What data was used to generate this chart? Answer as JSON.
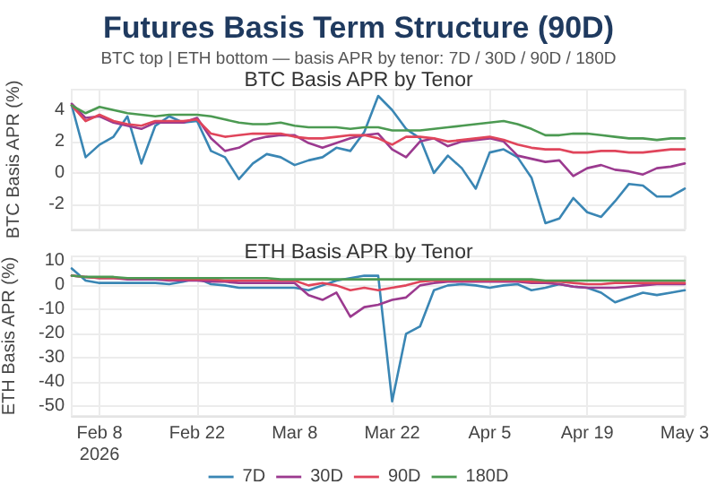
{
  "chart_data": [
    {
      "type": "line",
      "title": "Futures Basis Term Structure (90D)",
      "subtitle": "BTC top | ETH bottom — basis APR by tenor: 7D / 30D / 90D / 180D",
      "annotations": [
        "BTC Basis APR by Tenor"
      ],
      "ylabel": "BTC Basis APR (%)",
      "x": [
        "2026-02-04",
        "2026-02-06",
        "2026-02-08",
        "2026-02-10",
        "2026-02-12",
        "2026-02-14",
        "2026-02-16",
        "2026-02-18",
        "2026-02-20",
        "2026-02-22",
        "2026-02-24",
        "2026-02-26",
        "2026-02-28",
        "2026-03-02",
        "2026-03-04",
        "2026-03-06",
        "2026-03-08",
        "2026-03-10",
        "2026-03-12",
        "2026-03-14",
        "2026-03-16",
        "2026-03-18",
        "2026-03-20",
        "2026-03-22",
        "2026-03-24",
        "2026-03-26",
        "2026-03-28",
        "2026-03-30",
        "2026-04-01",
        "2026-04-03",
        "2026-04-05",
        "2026-04-07",
        "2026-04-09",
        "2026-04-11",
        "2026-04-13",
        "2026-04-15",
        "2026-04-17",
        "2026-04-19",
        "2026-04-21",
        "2026-04-23",
        "2026-04-25",
        "2026-04-27",
        "2026-04-29",
        "2026-05-01",
        "2026-05-03"
      ],
      "series": [
        {
          "color": "#3a86b4",
          "values": [
            4.3,
            1.0,
            1.8,
            2.3,
            3.6,
            0.6,
            3.0,
            3.6,
            3.2,
            3.3,
            1.4,
            1.0,
            -0.4,
            0.6,
            1.2,
            1.0,
            0.5,
            0.8,
            1.0,
            1.6,
            1.4,
            2.6,
            4.9,
            4.0,
            2.8,
            2.2,
            0,
            1.1,
            0.3,
            -1.0,
            1.3,
            1.5,
            1.0,
            -0.3,
            -3.2,
            -2.9,
            -1.6,
            -2.5,
            -2.8,
            -1.8,
            -0.7,
            -0.8,
            -1.5,
            -1.5,
            -1.0
          ]
        },
        {
          "color": "#9b3a8f",
          "values": [
            4.4,
            3.5,
            3.6,
            3.2,
            3.0,
            2.8,
            3.2,
            3.2,
            3.2,
            3.5,
            2.2,
            1.4,
            1.6,
            2.1,
            2.3,
            2.4,
            2.4,
            1.9,
            1.6,
            1.9,
            2.2,
            2.4,
            2.5,
            1.5,
            1.0,
            2.0,
            2.2,
            1.7,
            2.0,
            2.1,
            2.2,
            2.0,
            1.1,
            0.9,
            0.7,
            0.8,
            -0.2,
            0.3,
            0.5,
            0.2,
            0.1,
            -0.1,
            0.3,
            0.4,
            0.6
          ]
        },
        {
          "color": "#e0455b",
          "values": [
            4.3,
            3.3,
            3.7,
            3.3,
            3.1,
            3.0,
            3.3,
            3.3,
            3.3,
            3.4,
            2.5,
            2.3,
            2.4,
            2.5,
            2.5,
            2.5,
            2.3,
            2.2,
            2.2,
            2.3,
            2.4,
            2.4,
            2.2,
            1.8,
            2.3,
            2.3,
            2.2,
            2.0,
            2.1,
            2.2,
            2.3,
            2.1,
            1.8,
            1.6,
            1.5,
            1.5,
            1.3,
            1.3,
            1.4,
            1.4,
            1.3,
            1.3,
            1.4,
            1.5,
            1.5
          ]
        },
        {
          "color": "#4c9a52",
          "values": [
            4.3,
            3.8,
            4.2,
            4.0,
            3.8,
            3.7,
            3.6,
            3.7,
            3.7,
            3.7,
            3.6,
            3.4,
            3.2,
            3.1,
            3.1,
            3.2,
            3.0,
            2.9,
            2.9,
            2.9,
            2.8,
            2.9,
            2.9,
            2.7,
            2.7,
            2.7,
            2.8,
            2.9,
            3.0,
            3.1,
            3.2,
            3.3,
            3.1,
            2.8,
            2.4,
            2.4,
            2.5,
            2.5,
            2.4,
            2.3,
            2.2,
            2.2,
            2.1,
            2.2,
            2.2
          ]
        }
      ],
      "xlim": [
        "2026-02-04",
        "2026-05-03"
      ],
      "xticks": [
        {
          "value": "2026-02-08",
          "label": null
        },
        {
          "value": "2026-02-22",
          "label": null
        },
        {
          "value": "2026-03-08",
          "label": null
        },
        {
          "value": "2026-03-22",
          "label": null
        },
        {
          "value": "2026-04-05",
          "label": null
        },
        {
          "value": "2026-04-19",
          "label": null
        },
        {
          "value": "2026-05-03",
          "label": null
        }
      ],
      "ylim": [
        -3.6,
        5.3
      ],
      "yticks": [
        -2,
        0,
        2,
        4
      ],
      "tick_labels": "y",
      "grid": true,
      "marker": "none",
      "line_style": "solid"
    },
    {
      "type": "line",
      "title": "ETH Basis APR by Tenor",
      "ylabel": "ETH Basis APR (%)",
      "x": [
        "2026-02-04",
        "2026-02-06",
        "2026-02-08",
        "2026-02-10",
        "2026-02-12",
        "2026-02-14",
        "2026-02-16",
        "2026-02-18",
        "2026-02-20",
        "2026-02-22",
        "2026-02-24",
        "2026-02-26",
        "2026-02-28",
        "2026-03-02",
        "2026-03-04",
        "2026-03-06",
        "2026-03-08",
        "2026-03-10",
        "2026-03-12",
        "2026-03-14",
        "2026-03-16",
        "2026-03-18",
        "2026-03-20",
        "2026-03-22",
        "2026-03-24",
        "2026-03-26",
        "2026-03-28",
        "2026-03-30",
        "2026-04-01",
        "2026-04-03",
        "2026-04-05",
        "2026-04-07",
        "2026-04-09",
        "2026-04-11",
        "2026-04-13",
        "2026-04-15",
        "2026-04-17",
        "2026-04-19",
        "2026-04-21",
        "2026-04-23",
        "2026-04-25",
        "2026-04-27",
        "2026-04-29",
        "2026-05-01",
        "2026-05-03"
      ],
      "series": [
        {
          "name": "7D",
          "color": "#3a86b4",
          "values": [
            7,
            2,
            1,
            1,
            1,
            1,
            1,
            0.5,
            1.5,
            3,
            0.5,
            0,
            -1,
            -1,
            -1,
            -1,
            -1,
            -2,
            0,
            2,
            3,
            4,
            4,
            -48,
            -20,
            -17,
            -2,
            0,
            0.5,
            0,
            -1,
            0,
            0.5,
            -2,
            -1,
            0.5,
            -0.5,
            -1,
            -3,
            -7,
            -5,
            -3,
            -4,
            -3,
            -2
          ]
        },
        {
          "name": "30D",
          "color": "#9b3a8f",
          "values": [
            4,
            3.5,
            3,
            3,
            2.5,
            2.5,
            2.5,
            2,
            2,
            2,
            1.5,
            1.5,
            1,
            1,
            1,
            1,
            1,
            -4,
            -6,
            -3,
            -13,
            -9,
            -8,
            -6,
            -5,
            0,
            1,
            1.5,
            1.5,
            1.5,
            1.5,
            1.5,
            1.5,
            1,
            1,
            0.5,
            -0.5,
            -1,
            -1,
            -1,
            -0.5,
            0,
            0.5,
            0.5,
            0.5
          ]
        },
        {
          "name": "90D",
          "color": "#e0455b",
          "values": [
            4,
            3.5,
            3,
            3,
            3,
            3,
            3,
            2.5,
            2.5,
            2.5,
            2.5,
            2,
            2,
            2,
            2,
            2,
            2,
            0,
            1,
            0,
            -2,
            -1,
            -2,
            -1,
            0,
            1.5,
            2,
            2,
            2,
            2,
            2,
            2,
            2,
            1.5,
            1.5,
            1.5,
            1,
            0.5,
            0.5,
            1,
            1,
            1,
            1,
            1,
            1
          ]
        },
        {
          "name": "180D",
          "color": "#4c9a52",
          "values": [
            4,
            3.5,
            3.5,
            3.5,
            3,
            3,
            3,
            3,
            3,
            3,
            3,
            3,
            3,
            3,
            3,
            2.5,
            2.5,
            2.5,
            2.5,
            2.5,
            2.5,
            2.5,
            2.5,
            2.5,
            2.5,
            2.5,
            2.5,
            2.5,
            2.5,
            2.5,
            2.5,
            2.5,
            2.5,
            2.5,
            2,
            2,
            2,
            2,
            2,
            2,
            2,
            2,
            2,
            2,
            2
          ]
        }
      ],
      "xlim": [
        "2026-02-04",
        "2026-05-03"
      ],
      "xticks": [
        {
          "value": "2026-02-08",
          "label": "Feb 8\n2026"
        },
        {
          "value": "2026-02-22",
          "label": "Feb 22"
        },
        {
          "value": "2026-03-08",
          "label": "Mar 8"
        },
        {
          "value": "2026-03-22",
          "label": "Mar 22"
        },
        {
          "value": "2026-04-05",
          "label": "Apr 5"
        },
        {
          "value": "2026-04-19",
          "label": "Apr 19"
        },
        {
          "value": "2026-05-03",
          "label": "May 3"
        }
      ],
      "ylim": [
        -54,
        12
      ],
      "yticks": [
        10,
        0,
        -10,
        -20,
        -30,
        -40,
        -50
      ],
      "grid": true,
      "legend": "bottom",
      "marker": "none",
      "line_style": "solid"
    }
  ]
}
